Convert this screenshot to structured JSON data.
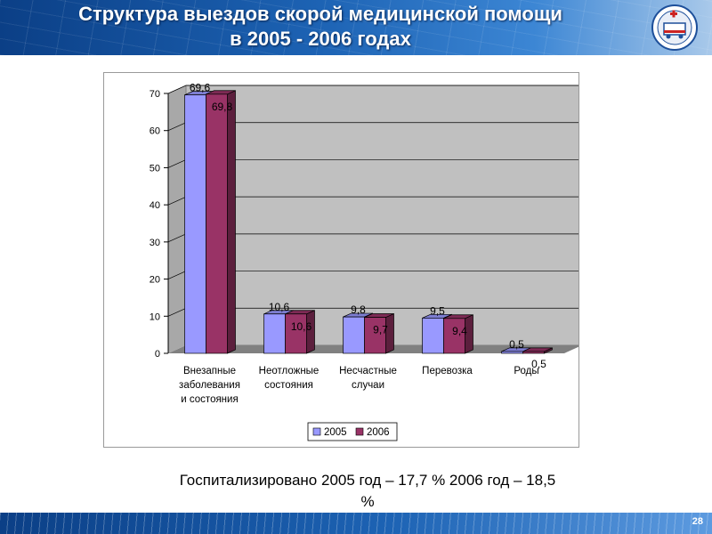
{
  "slide": {
    "title_line1": "Структура выездов  скорой  медицинской помощи",
    "title_line2": "в 2005 - 2006 годах",
    "caption_line1": "Госпитализировано 2005 год – 17,7 %   2006 год – 18,5",
    "caption_line2": "%",
    "page_number": "28"
  },
  "colors": {
    "series_2005": "#9999ff",
    "series_2006": "#993366",
    "wall": "#c0c0c0",
    "floor": "#808080"
  },
  "logo": {
    "icon": "ambulance-emblem-icon"
  },
  "chart_data": {
    "type": "bar",
    "style": "3d-clustered-column",
    "categories": [
      [
        "Внезапные",
        "заболевания",
        "и состояния"
      ],
      [
        "Неотложные",
        "состояния"
      ],
      [
        "Несчастные",
        "случаи"
      ],
      [
        "Перевозка"
      ],
      [
        "Роды"
      ]
    ],
    "series": [
      {
        "name": "2005",
        "values": [
          69.6,
          10.6,
          9.8,
          9.5,
          0.5
        ],
        "labels": [
          "69,6",
          "10,6",
          "9,8",
          "9,5",
          "0,5"
        ]
      },
      {
        "name": "2006",
        "values": [
          69.8,
          10.6,
          9.7,
          9.4,
          0.5
        ],
        "labels": [
          "69,8",
          "10,6",
          "9,7",
          "9,4",
          "0,5"
        ]
      }
    ],
    "yticks": [
      0,
      10,
      20,
      30,
      40,
      50,
      60,
      70
    ],
    "ylim": [
      0,
      70
    ],
    "grid": true,
    "legend_position": "bottom"
  }
}
